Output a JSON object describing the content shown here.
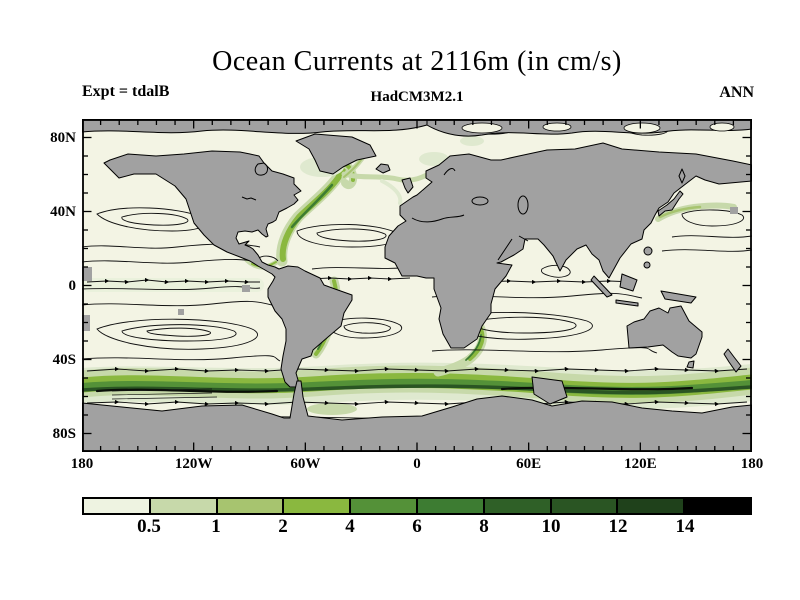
{
  "figure": {
    "title": "Ocean Currents at 2116m (in cm/s)",
    "experiment_label": "Expt = tdalB",
    "model_label": "HadCM3M2.1",
    "season_label": "ANN"
  },
  "map": {
    "lat_tick_labels": [
      "80N",
      "40N",
      "0",
      "40S",
      "80S"
    ],
    "lon_tick_labels": [
      "180",
      "120W",
      "60W",
      "0",
      "60E",
      "120E",
      "180"
    ],
    "land_color": "#a1a1a1",
    "ocean_color": "#f3f4e4",
    "coastline_color": "#000000"
  },
  "chart_data": {
    "type": "heatmap",
    "title": "Ocean Currents at 2116m (in cm/s)",
    "variable": "ocean current speed",
    "units": "cm/s",
    "depth_m": 2116,
    "model": "HadCM3M2.1",
    "experiment": "tdalB",
    "season": "ANN",
    "projection": "equirectangular world map with streamline contours",
    "lon_axis": {
      "ticks": [
        "180",
        "120W",
        "60W",
        "0",
        "60E",
        "120E",
        "180"
      ],
      "range_deg": [
        -180,
        180
      ]
    },
    "lat_axis": {
      "ticks": [
        "80N",
        "40N",
        "0",
        "40S",
        "80S"
      ],
      "range_deg": [
        -90,
        90
      ]
    },
    "colorbar": {
      "orientation": "horizontal",
      "boundary_labels": [
        "0.5",
        "1",
        "2",
        "4",
        "6",
        "8",
        "10",
        "12",
        "14"
      ],
      "segment_colors": [
        "#eef3e1",
        "#c7d9aa",
        "#a7c46f",
        "#8ab83f",
        "#549138",
        "#3d7c32",
        "#2f6027",
        "#2a5523",
        "#1f411b",
        "#000000"
      ]
    },
    "features": [
      {
        "name": "Antarctic Circumpolar Current band",
        "location": "about 50S-60S, circumglobal",
        "speed_cm_s": "2 to >14 (darkest core)"
      },
      {
        "name": "Gulf Stream / North Atlantic deep western boundary current",
        "location": "NW Atlantic along North American coast",
        "speed_cm_s": "1-6"
      },
      {
        "name": "Brazil coast boundary current",
        "location": "SW Atlantic along South America",
        "speed_cm_s": "0.5-4"
      },
      {
        "name": "Agulhas region current",
        "location": "off SE Africa",
        "speed_cm_s": "0.5-4"
      },
      {
        "name": "Kuroshio extension",
        "location": "NW Pacific off Japan",
        "speed_cm_s": "0.5-1"
      },
      {
        "name": "land and shallow sea floor mask",
        "location": "continents, Arctic, Antarctica, plateaus",
        "speed_cm_s": "masked gray"
      }
    ]
  }
}
